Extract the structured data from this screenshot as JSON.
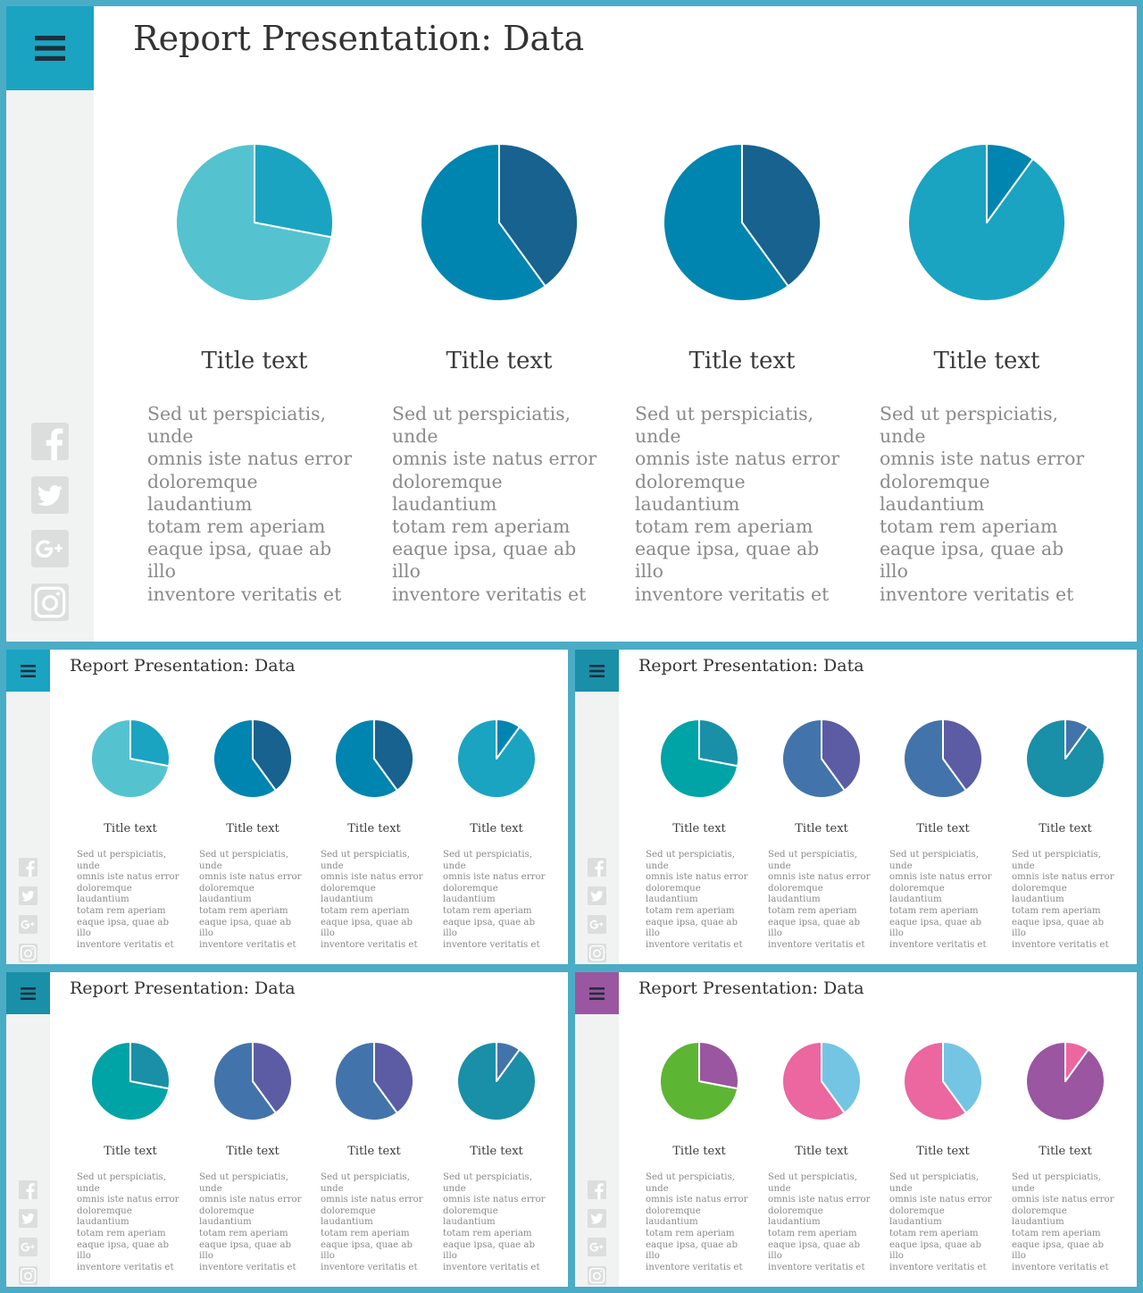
{
  "slides": [
    {
      "title": "Report Presentation: Data",
      "menu_color": "#1aa4c2",
      "icons": [
        "facebook-icon",
        "twitter-icon",
        "google-plus-icon",
        "instagram-icon"
      ],
      "cards": [
        {
          "title": "Title text",
          "body": "Sed ut perspiciatis, unde\nomnis  iste natus error\ndoloremque laudantium\ntotam rem aperiam\neaque ipsa, quae ab illo\ninventore veritatis et"
        },
        {
          "title": "Title text",
          "body": "Sed ut perspiciatis, unde\nomnis  iste natus error\ndoloremque laudantium\ntotam rem aperiam\neaque ipsa, quae ab illo\ninventore veritatis et"
        },
        {
          "title": "Title text",
          "body": "Sed ut perspiciatis, unde\nomnis  iste natus error\ndoloremque laudantium\ntotam rem aperiam\neaque ipsa, quae ab illo\ninventore veritatis et"
        },
        {
          "title": "Title text",
          "body": "Sed ut perspiciatis, unde\nomnis  iste natus error\ndoloremque laudantium\ntotam rem aperiam\neaque ipsa, quae ab illo\ninventore veritatis et"
        }
      ]
    },
    {
      "title": "Report Presentation: Data",
      "menu_color": "#1aa4c2",
      "icons": [
        "facebook-icon",
        "twitter-icon",
        "google-plus-icon",
        "instagram-icon"
      ],
      "cards": [
        {
          "title": "Title text",
          "body": "Sed ut perspiciatis, unde\nomnis  iste natus error\ndoloremque laudantium\ntotam rem aperiam\neaque ipsa, quae ab illo\ninventore veritatis et"
        },
        {
          "title": "Title text",
          "body": "Sed ut perspiciatis, unde\nomnis  iste natus error\ndoloremque laudantium\ntotam rem aperiam\neaque ipsa, quae ab illo\ninventore veritatis et"
        },
        {
          "title": "Title text",
          "body": "Sed ut perspiciatis, unde\nomnis  iste natus error\ndoloremque laudantium\ntotam rem aperiam\neaque ipsa, quae ab illo\ninventore veritatis et"
        },
        {
          "title": "Title text",
          "body": "Sed ut perspiciatis, unde\nomnis  iste natus error\ndoloremque laudantium\ntotam rem aperiam\neaque ipsa, quae ab illo\ninventore veritatis et"
        }
      ]
    },
    {
      "title": "Report Presentation: Data",
      "menu_color": "#1a8fa8",
      "icons": [
        "facebook-icon",
        "twitter-icon",
        "google-plus-icon",
        "instagram-icon"
      ],
      "cards": [
        {
          "title": "Title text",
          "body": "Sed ut perspiciatis, unde\nomnis  iste natus error\ndoloremque laudantium\ntotam rem aperiam\neaque ipsa, quae ab illo\ninventore veritatis et"
        },
        {
          "title": "Title text",
          "body": "Sed ut perspiciatis, unde\nomnis  iste natus error\ndoloremque laudantium\ntotam rem aperiam\neaque ipsa, quae ab illo\ninventore veritatis et"
        },
        {
          "title": "Title text",
          "body": "Sed ut perspiciatis, unde\nomnis  iste natus error\ndoloremque laudantium\ntotam rem aperiam\neaque ipsa, quae ab illo\ninventore veritatis et"
        },
        {
          "title": "Title text",
          "body": "Sed ut perspiciatis, unde\nomnis  iste natus error\ndoloremque laudantium\ntotam rem aperiam\neaque ipsa, quae ab illo\ninventore veritatis et"
        }
      ]
    },
    {
      "title": "Report Presentation: Data",
      "menu_color": "#1a8fa8",
      "icons": [
        "facebook-icon",
        "twitter-icon",
        "google-plus-icon",
        "instagram-icon"
      ],
      "cards": [
        {
          "title": "Title text",
          "body": "Sed ut perspiciatis, unde\nomnis  iste natus error\ndoloremque laudantium\ntotam rem aperiam\neaque ipsa, quae ab illo\ninventore veritatis et"
        },
        {
          "title": "Title text",
          "body": "Sed ut perspiciatis, unde\nomnis  iste natus error\ndoloremque laudantium\ntotam rem aperiam\neaque ipsa, quae ab illo\ninventore veritatis et"
        },
        {
          "title": "Title text",
          "body": "Sed ut perspiciatis, unde\nomnis  iste natus error\ndoloremque laudantium\ntotam rem aperiam\neaque ipsa, quae ab illo\ninventore veritatis et"
        },
        {
          "title": "Title text",
          "body": "Sed ut perspiciatis, unde\nomnis  iste natus error\ndoloremque laudantium\ntotam rem aperiam\neaque ipsa, quae ab illo\ninventore veritatis et"
        }
      ]
    },
    {
      "title": "Report Presentation: Data",
      "menu_color": "#9a56a0",
      "icons": [
        "facebook-icon",
        "twitter-icon",
        "google-plus-icon",
        "instagram-icon"
      ],
      "cards": [
        {
          "title": "Title text",
          "body": "Sed ut perspiciatis, unde\nomnis  iste natus error\ndoloremque laudantium\ntotam rem aperiam\neaque ipsa, quae ab illo\ninventore veritatis et"
        },
        {
          "title": "Title text",
          "body": "Sed ut perspiciatis, unde\nomnis  iste natus error\ndoloremque laudantium\ntotam rem aperiam\neaque ipsa, quae ab illo\ninventore veritatis et"
        },
        {
          "title": "Title text",
          "body": "Sed ut perspiciatis, unde\nomnis  iste natus error\ndoloremque laudantium\ntotam rem aperiam\neaque ipsa, quae ab illo\ninventore veritatis et"
        },
        {
          "title": "Title text",
          "body": "Sed ut perspiciatis, unde\nomnis  iste natus error\ndoloremque laudantium\ntotam rem aperiam\neaque ipsa, quae ab illo\ninventore veritatis et"
        }
      ]
    }
  ],
  "chart_data": [
    {
      "type": "pie",
      "slide": 1,
      "values": [
        72,
        28
      ],
      "colors": [
        "#54c3cf",
        "#1aa4c2"
      ]
    },
    {
      "type": "pie",
      "slide": 1,
      "values": [
        60,
        40
      ],
      "colors": [
        "#0085b0",
        "#17628f"
      ]
    },
    {
      "type": "pie",
      "slide": 1,
      "values": [
        60,
        40
      ],
      "colors": [
        "#0085b0",
        "#17628f"
      ]
    },
    {
      "type": "pie",
      "slide": 1,
      "values": [
        90,
        10
      ],
      "colors": [
        "#1aa4c2",
        "#0085b0"
      ]
    },
    {
      "type": "pie",
      "slide": 2,
      "values": [
        72,
        28
      ],
      "colors": [
        "#54c3cf",
        "#1aa4c2"
      ]
    },
    {
      "type": "pie",
      "slide": 2,
      "values": [
        60,
        40
      ],
      "colors": [
        "#0085b0",
        "#17628f"
      ]
    },
    {
      "type": "pie",
      "slide": 2,
      "values": [
        60,
        40
      ],
      "colors": [
        "#0085b0",
        "#17628f"
      ]
    },
    {
      "type": "pie",
      "slide": 2,
      "values": [
        90,
        10
      ],
      "colors": [
        "#1aa4c2",
        "#0085b0"
      ]
    },
    {
      "type": "pie",
      "slide": 3,
      "values": [
        72,
        28
      ],
      "colors": [
        "#00a3a6",
        "#1a8fa8"
      ]
    },
    {
      "type": "pie",
      "slide": 3,
      "values": [
        60,
        40
      ],
      "colors": [
        "#4274ab",
        "#5c5ca5"
      ]
    },
    {
      "type": "pie",
      "slide": 3,
      "values": [
        60,
        40
      ],
      "colors": [
        "#4274ab",
        "#5c5ca5"
      ]
    },
    {
      "type": "pie",
      "slide": 3,
      "values": [
        90,
        10
      ],
      "colors": [
        "#1a8fa8",
        "#4274ab"
      ]
    },
    {
      "type": "pie",
      "slide": 4,
      "values": [
        72,
        28
      ],
      "colors": [
        "#00a3a6",
        "#1a8fa8"
      ]
    },
    {
      "type": "pie",
      "slide": 4,
      "values": [
        60,
        40
      ],
      "colors": [
        "#4274ab",
        "#5c5ca5"
      ]
    },
    {
      "type": "pie",
      "slide": 4,
      "values": [
        60,
        40
      ],
      "colors": [
        "#4274ab",
        "#5c5ca5"
      ]
    },
    {
      "type": "pie",
      "slide": 4,
      "values": [
        90,
        10
      ],
      "colors": [
        "#1a8fa8",
        "#4274ab"
      ]
    },
    {
      "type": "pie",
      "slide": 5,
      "values": [
        72,
        28
      ],
      "colors": [
        "#5db534",
        "#9a56a0"
      ]
    },
    {
      "type": "pie",
      "slide": 5,
      "values": [
        60,
        40
      ],
      "colors": [
        "#ec669f",
        "#74c5e3"
      ]
    },
    {
      "type": "pie",
      "slide": 5,
      "values": [
        60,
        40
      ],
      "colors": [
        "#ec669f",
        "#74c5e3"
      ]
    },
    {
      "type": "pie",
      "slide": 5,
      "values": [
        90,
        10
      ],
      "colors": [
        "#9a56a0",
        "#ec669f"
      ]
    }
  ]
}
